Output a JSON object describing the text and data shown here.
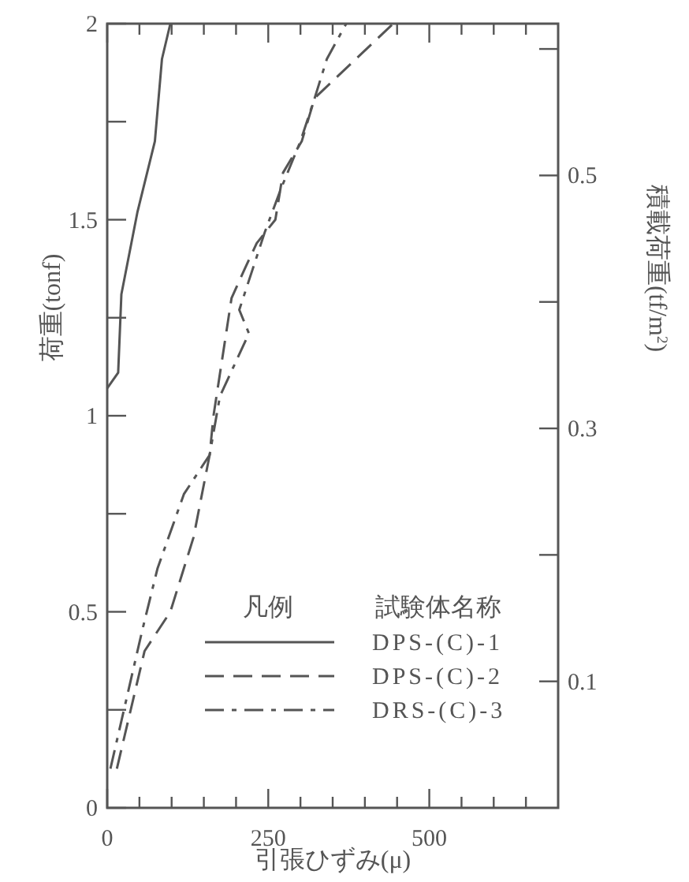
{
  "chart_data": {
    "type": "line",
    "xlabel": "引張ひずみ(μ)",
    "ylabel": "荷重(tonf)",
    "y2label": "積載荷重(tf/m$^{2}$)",
    "legend_title": "凡例",
    "annotations": [
      "試験体名称"
    ],
    "xlim": [
      0,
      700
    ],
    "ylim": [
      0,
      2
    ],
    "y2lim": [
      0,
      0.62
    ],
    "xticks": [
      0,
      {
        "value": 50,
        "label": null
      },
      {
        "value": 100,
        "label": null
      },
      {
        "value": 150,
        "label": null
      },
      {
        "value": 200,
        "label": null
      },
      250,
      {
        "value": 300,
        "label": null
      },
      {
        "value": 350,
        "label": null
      },
      {
        "value": 400,
        "label": null
      },
      {
        "value": 450,
        "label": null
      },
      500,
      {
        "value": 550,
        "label": null
      },
      {
        "value": 600,
        "label": null
      },
      {
        "value": 650,
        "label": null
      }
    ],
    "yticks": [
      0,
      {
        "value": 0.25,
        "label": null
      },
      0.5,
      {
        "value": 0.75,
        "label": null
      },
      1,
      {
        "value": 1.25,
        "label": null
      },
      1.5,
      {
        "value": 1.75,
        "label": null
      },
      2
    ],
    "y2ticks": [
      0.1,
      {
        "value": 0.2,
        "label": null
      },
      0.3,
      {
        "value": 0.4,
        "label": null
      },
      0.5,
      {
        "value": 0.6,
        "label": null
      }
    ],
    "legend": "bottom",
    "grid": false,
    "series": [
      {
        "name": "DPS-(C)-1",
        "color": "#555555",
        "line_style": "solid",
        "x": [
          0,
          17,
          22,
          47,
          74,
          85,
          98
        ],
        "values": [
          1.07,
          1.11,
          1.31,
          1.52,
          1.7,
          1.91,
          2.0
        ]
      },
      {
        "name": "DPS-(C)-2",
        "color": "#555555",
        "line_style": "dashed",
        "x": [
          15,
          58,
          98,
          134,
          159,
          165,
          193,
          215,
          232,
          261,
          273,
          302,
          322,
          444
        ],
        "values": [
          0.1,
          0.4,
          0.5,
          0.69,
          0.9,
          1.0,
          1.3,
          1.38,
          1.44,
          1.5,
          1.62,
          1.7,
          1.81,
          2.0
        ]
      },
      {
        "name": "DRS-(C)-3",
        "color": "#555555",
        "line_style": "dashdot",
        "x": [
          5,
          54,
          78,
          119,
          159,
          175,
          220,
          205,
          245,
          270,
          300,
          322,
          341,
          371
        ],
        "values": [
          0.1,
          0.45,
          0.61,
          0.8,
          0.9,
          1.05,
          1.21,
          1.27,
          1.47,
          1.58,
          1.7,
          1.81,
          1.91,
          2.0
        ]
      }
    ]
  }
}
